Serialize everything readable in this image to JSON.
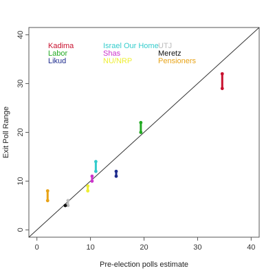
{
  "chart_data": {
    "type": "scatter",
    "xlabel": "Pre-election polls estimate",
    "ylabel": "Exit Poll Range",
    "xlim": [
      -1.5,
      41.5
    ],
    "ylim": [
      -1.5,
      41.5
    ],
    "xticks": [
      "0",
      "10",
      "20",
      "30",
      "40"
    ],
    "yticks": [
      "0",
      "10",
      "20",
      "30",
      "40"
    ],
    "grid": false,
    "legend_position": "top-left",
    "reference_line": "y = x",
    "series": [
      {
        "name": "Kadima",
        "color": "#c8102e",
        "x": 34.6,
        "y_min": 29,
        "y_max": 32
      },
      {
        "name": "Labor",
        "color": "#22aa22",
        "x": 19.4,
        "y_min": 20,
        "y_max": 22
      },
      {
        "name": "Likud",
        "color": "#1c2a8c",
        "x": 14.8,
        "y_min": 11,
        "y_max": 12
      },
      {
        "name": "Israel Our Home",
        "color": "#33cccc",
        "x": 11.0,
        "y_min": 12,
        "y_max": 14
      },
      {
        "name": "Shas",
        "color": "#cc33cc",
        "x": 10.3,
        "y_min": 10,
        "y_max": 11
      },
      {
        "name": "NU/NRP",
        "color": "#eeee33",
        "x": 9.5,
        "y_min": 8,
        "y_max": 9
      },
      {
        "name": "UTJ",
        "color": "#bbbbbb",
        "x": 5.8,
        "y_min": 5,
        "y_max": 6
      },
      {
        "name": "Meretz",
        "color": "#111111",
        "x": 5.3,
        "y_min": 5,
        "y_max": 5
      },
      {
        "name": "Pensioners",
        "color": "#e8a317",
        "x": 2.0,
        "y_min": 6,
        "y_max": 8
      }
    ]
  }
}
